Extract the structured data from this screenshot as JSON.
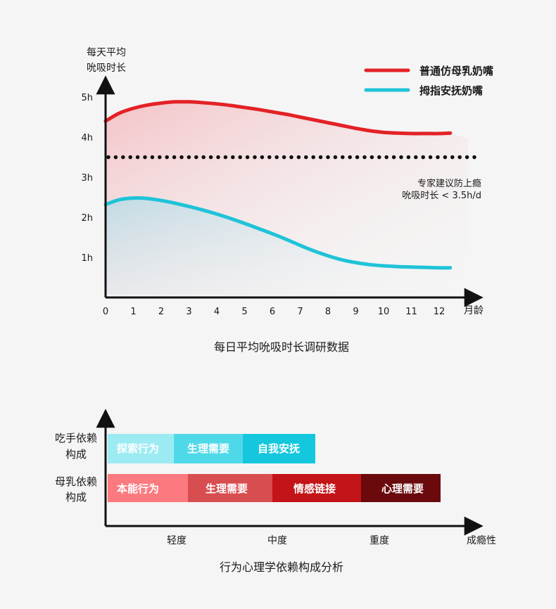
{
  "chart_data": [
    {
      "type": "line",
      "title": "每日平均吮吸时长调研数据",
      "ylabel": [
        "每天平均",
        "吮吸时长"
      ],
      "xlabel": "月龄",
      "x": [
        0,
        1,
        2,
        3,
        4,
        5,
        6,
        7,
        8,
        9,
        10,
        11,
        12
      ],
      "x_ticks": [
        "0",
        "1",
        "2",
        "3",
        "4",
        "5",
        "6",
        "7",
        "8",
        "9",
        "10",
        "11",
        "12"
      ],
      "y_ticks": [
        "1h",
        "2h",
        "3h",
        "4h",
        "5h"
      ],
      "y_tick_values": [
        1,
        2,
        3,
        4,
        5
      ],
      "xlim": [
        0,
        13.5
      ],
      "ylim": [
        0,
        5.8
      ],
      "series": [
        {
          "name": "普通仿母乳奶嘴",
          "color": "#e32226",
          "x": [
            0,
            0.5,
            1,
            1.5,
            2,
            2.5,
            3,
            3.5,
            4,
            4.5,
            5,
            5.5,
            6,
            6.5,
            7,
            7.5,
            8,
            8.5,
            9,
            9.5,
            10,
            10.5,
            11,
            11.5,
            12,
            12.4
          ],
          "values": [
            4.4,
            4.6,
            4.72,
            4.8,
            4.85,
            4.88,
            4.88,
            4.86,
            4.83,
            4.79,
            4.74,
            4.69,
            4.63,
            4.57,
            4.5,
            4.43,
            4.36,
            4.29,
            4.22,
            4.16,
            4.12,
            4.1,
            4.09,
            4.09,
            4.09,
            4.1
          ]
        },
        {
          "name": "拇指安抚奶嘴",
          "color": "#1fc3d8",
          "x": [
            0,
            0.5,
            1,
            1.5,
            2,
            2.5,
            3,
            3.5,
            4,
            4.5,
            5,
            5.5,
            6,
            6.5,
            7,
            7.5,
            8,
            8.5,
            9,
            9.5,
            10,
            10.5,
            11,
            11.5,
            12,
            12.4
          ],
          "values": [
            2.32,
            2.44,
            2.48,
            2.47,
            2.42,
            2.35,
            2.27,
            2.18,
            2.08,
            1.97,
            1.85,
            1.72,
            1.59,
            1.45,
            1.3,
            1.16,
            1.04,
            0.94,
            0.87,
            0.82,
            0.79,
            0.77,
            0.76,
            0.75,
            0.74,
            0.74
          ]
        }
      ],
      "reference_line": {
        "value": 3.5,
        "style": "dotted",
        "color": "#111111",
        "label": [
          "专家建议防上瘾",
          "吮吸时长 < 3.5h/d"
        ]
      },
      "legend": "top-right",
      "grid": false
    },
    {
      "type": "bar",
      "orientation": "horizontal-stacked",
      "title": "行为心理学依赖构成分析",
      "xlabel": "成瘾性",
      "x_ticks": [
        "轻度",
        "中度",
        "重度"
      ],
      "rows": [
        {
          "label": [
            "吃手依赖",
            "构成"
          ],
          "segments": [
            {
              "label": "探索行为",
              "color": "#9cebf2"
            },
            {
              "label": "生理需要",
              "color": "#4fd9e8"
            },
            {
              "label": "自我安抚",
              "color": "#15c7dd"
            }
          ]
        },
        {
          "label": [
            "母乳依赖",
            "构成"
          ],
          "segments": [
            {
              "label": "本能行为",
              "color": "#fb7a80"
            },
            {
              "label": "生理需要",
              "color": "#d84d50"
            },
            {
              "label": "情感链接",
              "color": "#c31418"
            },
            {
              "label": "心理需要",
              "color": "#6a0a0c"
            }
          ]
        }
      ]
    }
  ]
}
